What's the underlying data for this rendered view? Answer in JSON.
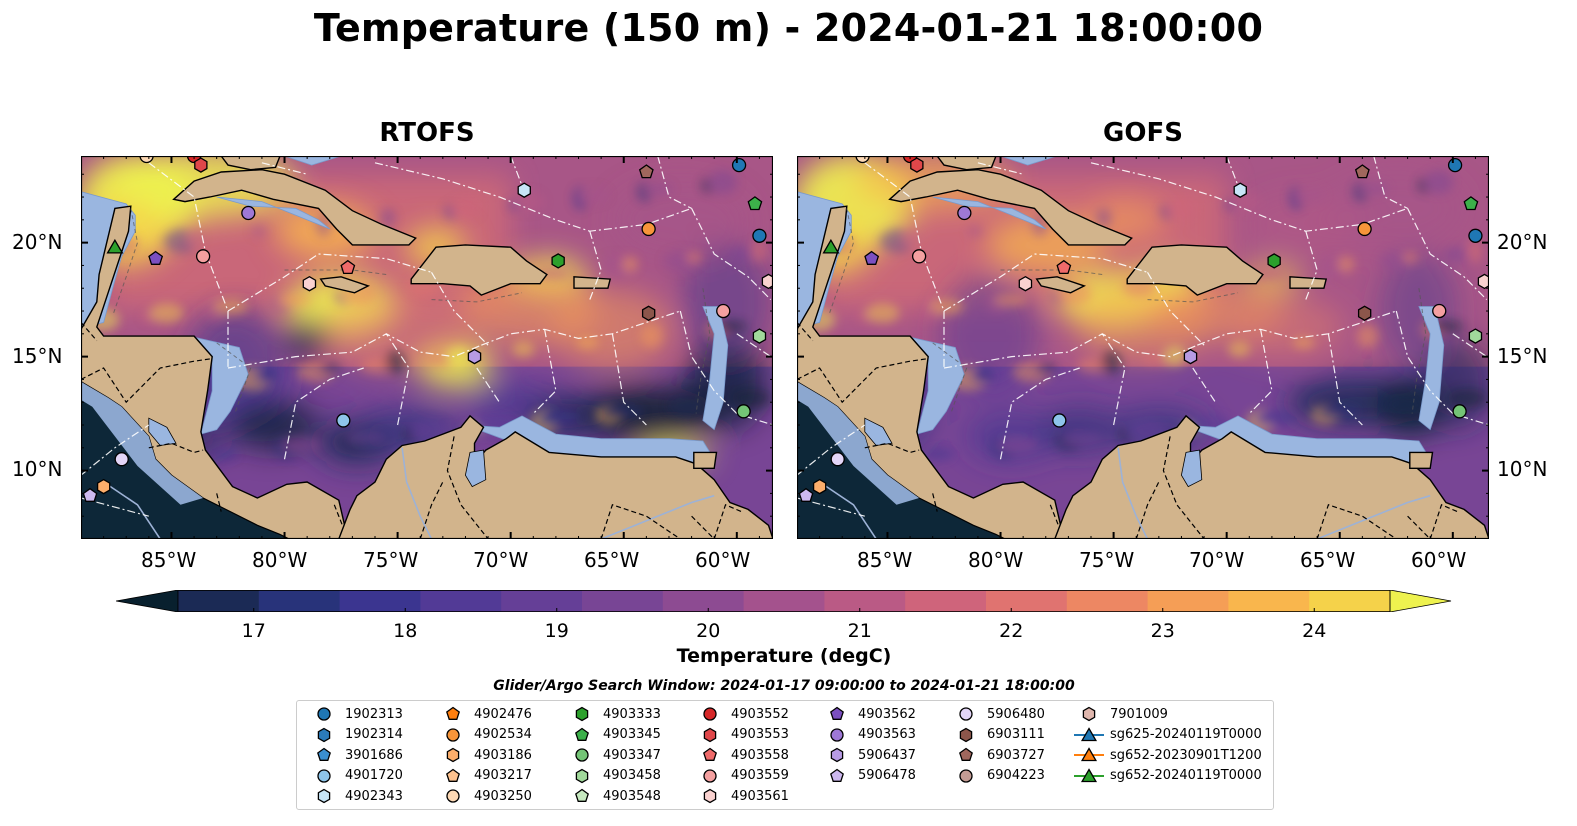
{
  "title": "Temperature (150 m) - 2024-01-21 18:00:00",
  "panels": [
    {
      "title": "RTOFS"
    },
    {
      "title": "GOFS"
    }
  ],
  "axes": {
    "lon_ticks": [
      "85°W",
      "80°W",
      "75°W",
      "70°W",
      "65°W",
      "60°W"
    ],
    "lat_ticks": [
      "20°N",
      "15°N",
      "10°N"
    ],
    "lon_values": [
      -85,
      -80,
      -75,
      -70,
      -65,
      -60
    ],
    "lat_values": [
      20,
      15,
      10
    ],
    "lon_range": [
      -89,
      -58.4
    ],
    "lat_range": [
      7.0,
      23.8
    ]
  },
  "colorbar": {
    "label": "Temperature (degC)",
    "ticks": [
      "17",
      "18",
      "19",
      "20",
      "21",
      "22",
      "23",
      "24"
    ],
    "min": 16.5,
    "max": 24.5,
    "extend": "both",
    "colors": [
      "#08202e",
      "#1b2a55",
      "#28337a",
      "#3b3590",
      "#523a96",
      "#653f97",
      "#784595",
      "#8d4b92",
      "#a4528d",
      "#ba5a85",
      "#cf647b",
      "#e07370",
      "#ed8763",
      "#f59e56",
      "#f9b64d",
      "#f5d24a",
      "#eef24f"
    ]
  },
  "legend": {
    "title": "Glider/Argo Search Window: 2024-01-17 09:00:00 to 2024-01-21 18:00:00",
    "entries": [
      {
        "label": "1902313",
        "marker": "circle",
        "color": "#1f77b4"
      },
      {
        "label": "1902314",
        "marker": "hexagon",
        "color": "#2b7bba"
      },
      {
        "label": "3901686",
        "marker": "pentagon",
        "color": "#3a8fd0"
      },
      {
        "label": "4901720",
        "marker": "circle",
        "color": "#8ec5ea"
      },
      {
        "label": "4902343",
        "marker": "hexagon",
        "color": "#c7e5f7"
      },
      {
        "label": "4902476",
        "marker": "pentagon",
        "color": "#ff7f0e"
      },
      {
        "label": "4902534",
        "marker": "circle",
        "color": "#f7953a"
      },
      {
        "label": "4903186",
        "marker": "hexagon",
        "color": "#fdae6b"
      },
      {
        "label": "4903217",
        "marker": "pentagon",
        "color": "#fdc28f"
      },
      {
        "label": "4903250",
        "marker": "circle",
        "color": "#fdd9b5"
      },
      {
        "label": "4903333",
        "marker": "hexagon",
        "color": "#2ca02c"
      },
      {
        "label": "4903345",
        "marker": "pentagon",
        "color": "#3cb04a"
      },
      {
        "label": "4903347",
        "marker": "circle",
        "color": "#74c476"
      },
      {
        "label": "4903458",
        "marker": "hexagon",
        "color": "#a1d99b"
      },
      {
        "label": "4903548",
        "marker": "pentagon",
        "color": "#c7e9c0"
      },
      {
        "label": "4903552",
        "marker": "circle",
        "color": "#d62728"
      },
      {
        "label": "4903553",
        "marker": "hexagon",
        "color": "#e0474a"
      },
      {
        "label": "4903558",
        "marker": "pentagon",
        "color": "#ef6a6a"
      },
      {
        "label": "4903559",
        "marker": "circle",
        "color": "#f4a0a0"
      },
      {
        "label": "4903561",
        "marker": "hexagon",
        "color": "#fad2d0"
      },
      {
        "label": "4903562",
        "marker": "pentagon",
        "color": "#7b4fc1"
      },
      {
        "label": "4903563",
        "marker": "circle",
        "color": "#9e78d6"
      },
      {
        "label": "5906437",
        "marker": "hexagon",
        "color": "#b79be4"
      },
      {
        "label": "5906478",
        "marker": "pentagon",
        "color": "#cdb8ef"
      },
      {
        "label": "5906480",
        "marker": "circle",
        "color": "#e3d5f7"
      },
      {
        "label": "6903111",
        "marker": "hexagon",
        "color": "#8c564b"
      },
      {
        "label": "6903727",
        "marker": "pentagon",
        "color": "#a0675d"
      },
      {
        "label": "6904223",
        "marker": "circle",
        "color": "#c49c94"
      },
      {
        "label": "7901009",
        "marker": "hexagon",
        "color": "#e0b7ae"
      },
      {
        "label": "sg625-20240119T0000",
        "marker": "triangle-line",
        "color": "#1f77b4"
      },
      {
        "label": "sg652-20230901T1200",
        "marker": "triangle-line",
        "color": "#ff7f0e"
      },
      {
        "label": "sg652-20240119T0000",
        "marker": "triangle-line",
        "color": "#2ca02c"
      }
    ]
  },
  "floats": [
    {
      "id": "1902313",
      "lon": -59.9,
      "lat": 23.4
    },
    {
      "id": "1902313",
      "lon": -59.0,
      "lat": 20.3
    },
    {
      "id": "4901720",
      "lon": -77.4,
      "lat": 12.2
    },
    {
      "id": "4902343",
      "lon": -69.4,
      "lat": 22.3
    },
    {
      "id": "4903250",
      "lon": -86.1,
      "lat": 23.8
    },
    {
      "id": "4902534",
      "lon": -63.9,
      "lat": 20.6
    },
    {
      "id": "4903333",
      "lon": -67.9,
      "lat": 19.2
    },
    {
      "id": "4903345",
      "lon": -59.2,
      "lat": 21.7
    },
    {
      "id": "4903347",
      "lon": -59.7,
      "lat": 12.6
    },
    {
      "id": "4903458",
      "lon": -59.0,
      "lat": 15.9
    },
    {
      "id": "4903552",
      "lon": -84.0,
      "lat": 23.8
    },
    {
      "id": "4903553",
      "lon": -83.7,
      "lat": 23.4
    },
    {
      "id": "4903558",
      "lon": -77.2,
      "lat": 18.9
    },
    {
      "id": "4903559",
      "lon": -83.6,
      "lat": 19.4
    },
    {
      "id": "4903559",
      "lon": -60.6,
      "lat": 17.0
    },
    {
      "id": "4903561",
      "lon": -58.6,
      "lat": 18.3
    },
    {
      "id": "4903561",
      "lon": -78.9,
      "lat": 18.2
    },
    {
      "id": "4903562",
      "lon": -85.7,
      "lat": 19.3
    },
    {
      "id": "4903563",
      "lon": -81.6,
      "lat": 21.3
    },
    {
      "id": "5906437",
      "lon": -71.6,
      "lat": 15.0
    },
    {
      "id": "5906478",
      "lon": -88.6,
      "lat": 8.9
    },
    {
      "id": "5906480",
      "lon": -87.2,
      "lat": 10.5
    },
    {
      "id": "4903186",
      "lon": -88.0,
      "lat": 9.3
    },
    {
      "id": "6903111",
      "lon": -63.9,
      "lat": 16.9
    },
    {
      "id": "6903727",
      "lon": -64.0,
      "lat": 23.1
    },
    {
      "id": "sg652-20240119T0000",
      "lon": -87.5,
      "lat": 19.8
    }
  ]
}
